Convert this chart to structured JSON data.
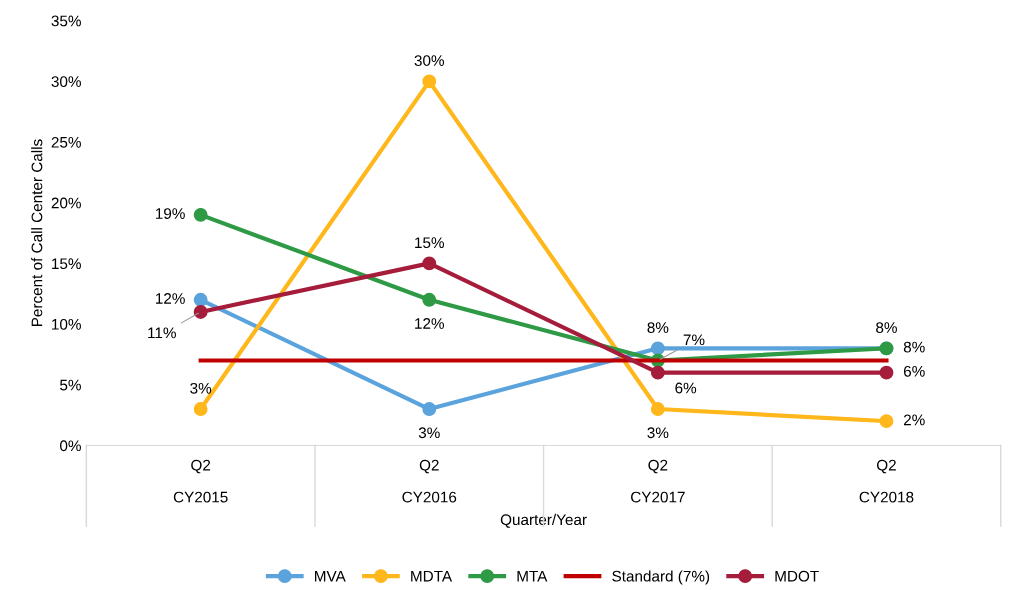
{
  "chart_data": {
    "type": "line",
    "xlabel": "Quarter/Year",
    "ylabel": "Percent of Call Center Calls",
    "categories": [
      "Q2\nCY2015",
      "Q2\nCY2016",
      "Q2\nCY2017",
      "Q2\nCY2018"
    ],
    "ylim": [
      0,
      35
    ],
    "yticks": [
      {
        "value": 0,
        "label": "0%"
      },
      {
        "value": 5,
        "label": "5%"
      },
      {
        "value": 10,
        "label": "10%"
      },
      {
        "value": 15,
        "label": "15%"
      },
      {
        "value": 20,
        "label": "20%"
      },
      {
        "value": 25,
        "label": "25%"
      },
      {
        "value": 30,
        "label": "30%"
      },
      {
        "value": 35,
        "label": "35%"
      }
    ],
    "grid": false,
    "legend": "bottom",
    "marker": "circle",
    "series": [
      {
        "name": "MVA",
        "color": "#5ba3dc",
        "values": [
          12,
          3,
          8,
          8
        ],
        "value_labels": [
          "12%",
          "3%",
          "8%",
          "8%"
        ]
      },
      {
        "name": "MDTA",
        "color": "#ffb71b",
        "values": [
          3,
          30,
          3,
          2
        ],
        "value_labels": [
          "3%",
          "30%",
          "3%",
          "2%"
        ]
      },
      {
        "name": "MTA",
        "color": "#2f9a45",
        "values": [
          19,
          12,
          7,
          8
        ],
        "value_labels": [
          "19%",
          "12%",
          "7%",
          "8%"
        ]
      },
      {
        "name": "Standard (7%)",
        "color": "#c00000",
        "values": [
          7,
          7,
          7,
          7
        ],
        "marker": "none"
      },
      {
        "name": "MDOT",
        "color": "#a51d3b",
        "values": [
          11,
          15,
          6,
          6
        ],
        "value_labels": [
          "11%",
          "15%",
          "6%",
          "6%"
        ]
      }
    ]
  }
}
